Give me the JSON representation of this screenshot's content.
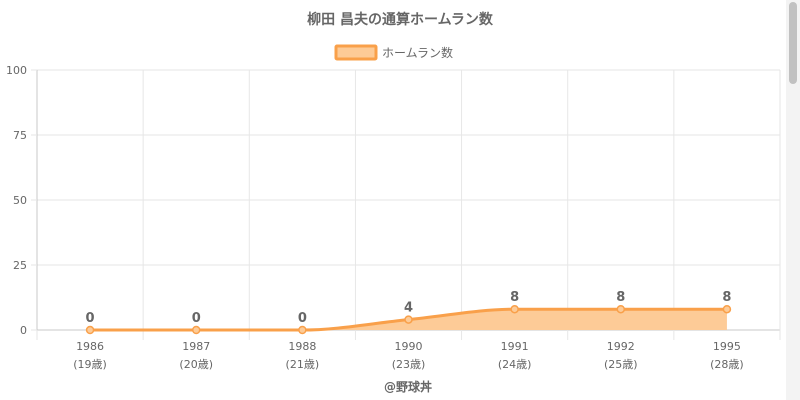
{
  "colors": {
    "line": "#f9a04a",
    "fill": "#fdcb97",
    "grid": "#e6e6e6",
    "axis": "#c8c8c8",
    "text": "#666666"
  },
  "chart_data": {
    "type": "area",
    "title": "柳田 昌夫の通算ホームラン数",
    "x": [
      "1986",
      "1987",
      "1988",
      "1990",
      "1991",
      "1992",
      "1995"
    ],
    "x_sublabels": [
      "(19歳)",
      "(20歳)",
      "(21歳)",
      "(23歳)",
      "(24歳)",
      "(25歳)",
      "(28歳)"
    ],
    "series": [
      {
        "name": "ホームラン数",
        "values": [
          0,
          0,
          0,
          4,
          8,
          8,
          8
        ]
      }
    ],
    "data_labels": [
      "0",
      "0",
      "0",
      "4",
      "8",
      "8",
      "8"
    ],
    "ylim": [
      0,
      100
    ],
    "yticks": [
      0,
      25,
      50,
      75,
      100
    ],
    "ytick_labels": [
      "0",
      "25",
      "50",
      "75",
      "100"
    ],
    "grid": true,
    "legend": "top-center",
    "credit": "@野球丼"
  }
}
